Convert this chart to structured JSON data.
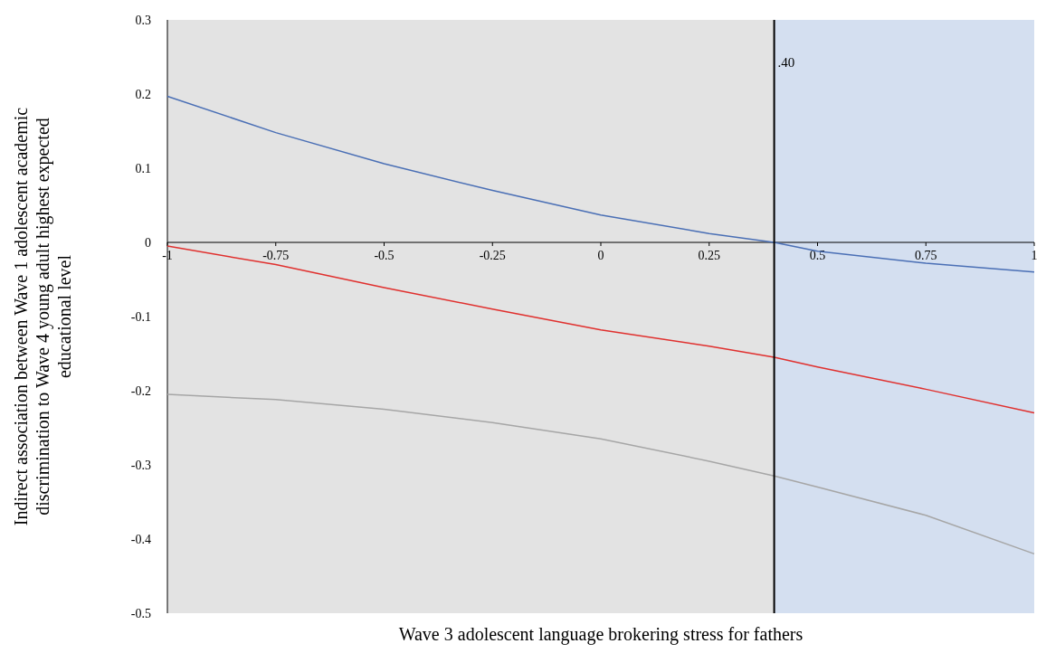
{
  "chart_data": {
    "type": "line",
    "xlabel": "Wave 3 adolescent language brokering stress for fathers",
    "ylabel": "Indirect association between Wave 1 adolescent academic\ndiscrimination to Wave 4 young adult highest expected\neducational level",
    "x": [
      -1,
      -0.75,
      -0.5,
      -0.25,
      0,
      0.25,
      0.4,
      0.5,
      0.75,
      1
    ],
    "series": [
      {
        "color": "#4a6fb5",
        "values": [
          0.197,
          0.148,
          0.106,
          0.07,
          0.037,
          0.012,
          0,
          -0.012,
          -0.028,
          -0.04
        ]
      },
      {
        "color": "#e0302e",
        "values": [
          -0.005,
          -0.03,
          -0.061,
          -0.09,
          -0.118,
          -0.14,
          -0.155,
          -0.168,
          -0.198,
          -0.23
        ]
      },
      {
        "color": "#a6a6a6",
        "values": [
          -0.205,
          -0.212,
          -0.225,
          -0.243,
          -0.265,
          -0.295,
          -0.315,
          -0.33,
          -0.368,
          -0.42
        ]
      }
    ],
    "xlim": [
      -1,
      1
    ],
    "xticks": [
      -1,
      -0.75,
      -0.5,
      -0.25,
      0,
      0.25,
      0.5,
      0.75,
      1
    ],
    "ylim": [
      -0.5,
      0.3
    ],
    "yticks": [
      -0.5,
      -0.4,
      -0.3,
      -0.2,
      -0.1,
      0,
      0.1,
      0.2,
      0.3
    ],
    "ref_lines": [
      {
        "axis": "x",
        "value": 0.4,
        "label": ".40",
        "color": "#000000"
      }
    ],
    "bands": [
      {
        "axis": "x",
        "from": -1,
        "to": 0.4,
        "color": "#e3e3e3"
      },
      {
        "axis": "x",
        "from": 0.4,
        "to": 1,
        "color": "#d4dff0"
      }
    ],
    "line_style": "solid"
  }
}
